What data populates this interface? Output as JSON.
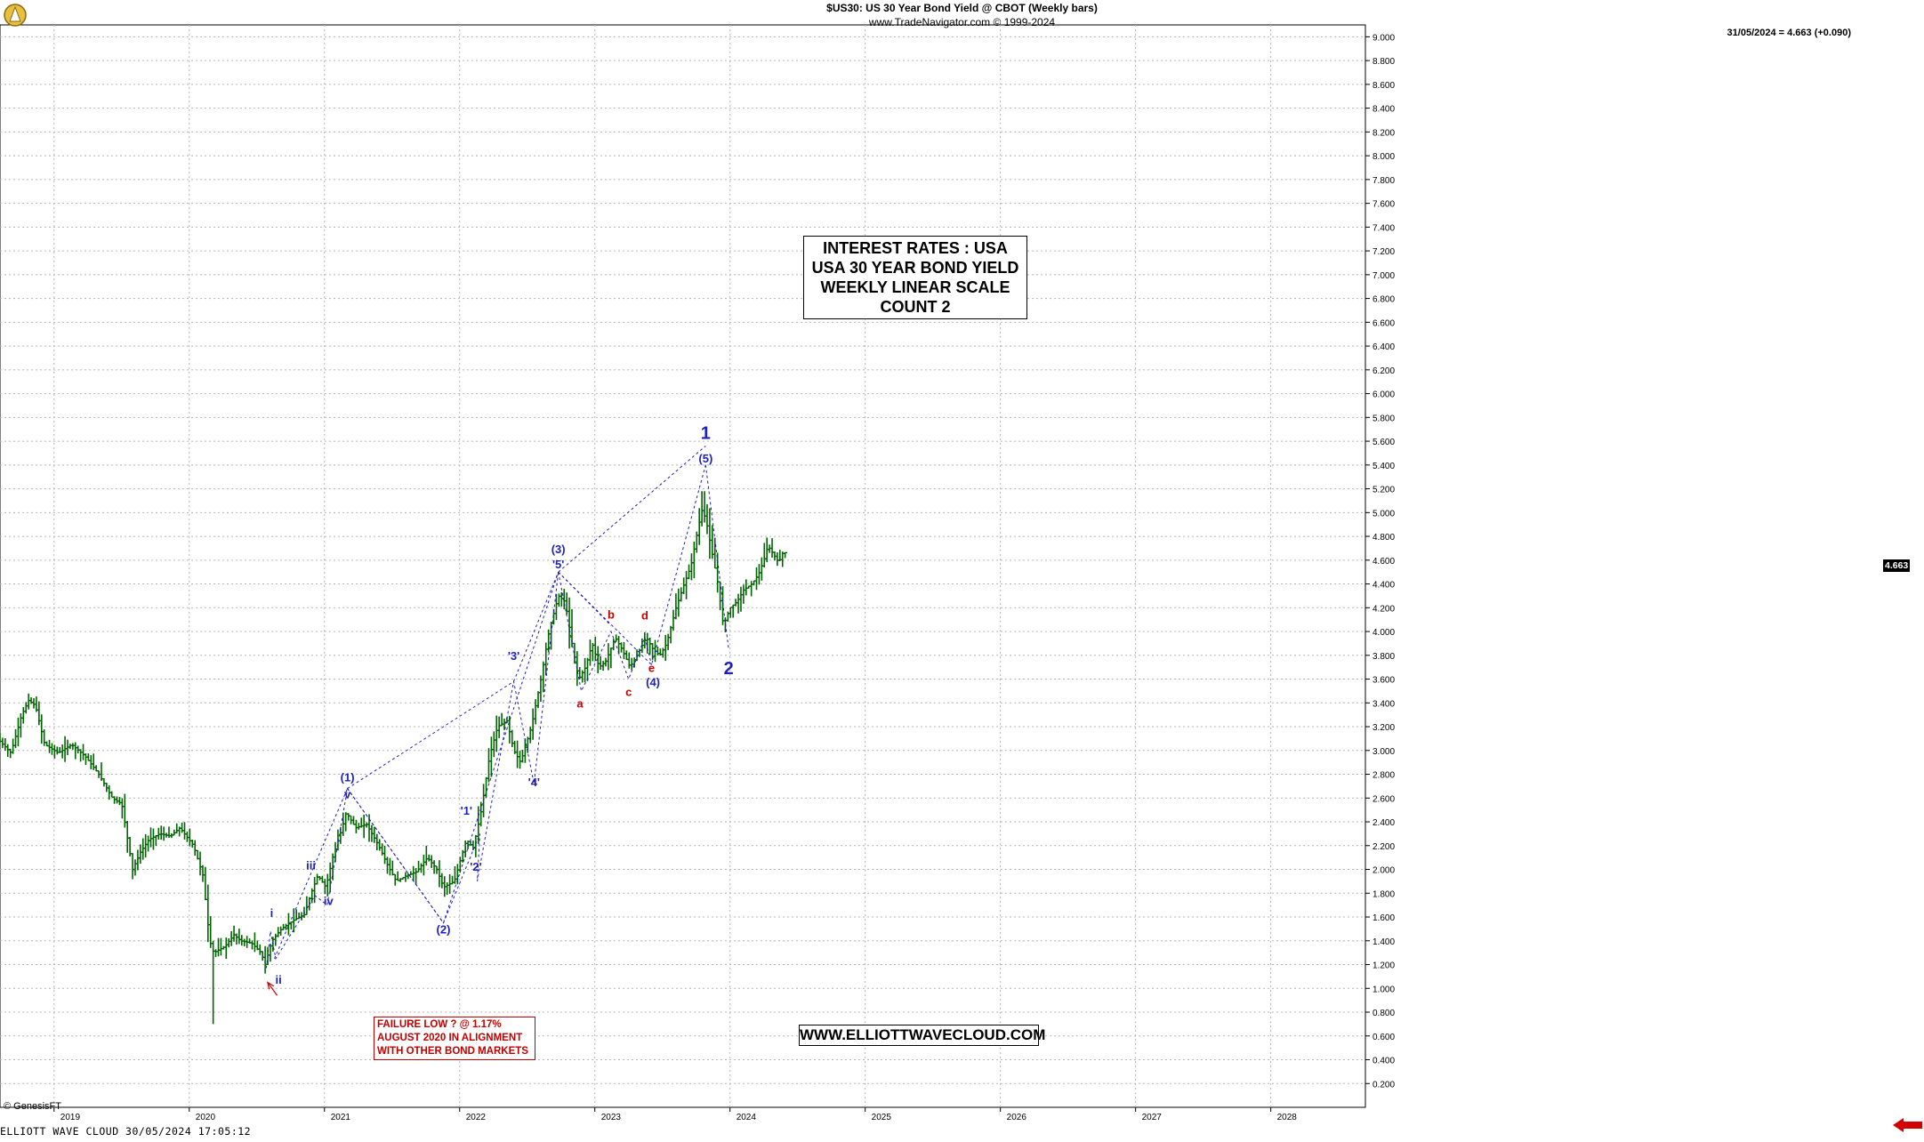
{
  "header": {
    "line1": "$US30:  US 30 Year Bond Yield @ CBOT  (Weekly bars)",
    "line2": "www.TradeNavigator.com © 1999-2024",
    "last_quote": "31/05/2024 = 4.663 (+0.090)"
  },
  "title_box": [
    "INTEREST RATES : USA",
    "USA 30 YEAR BOND YIELD",
    "WEEKLY LINEAR SCALE",
    "COUNT 2"
  ],
  "url_box": "WWW.ELLIOTTWAVECLOUD.COM",
  "note_box": [
    "FAILURE LOW ? @ 1.17%",
    "AUGUST 2020 IN ALIGNMENT",
    "WITH OTHER BOND MARKETS"
  ],
  "copyright": "© GenesisFT",
  "footer": "ELLIOTT WAVE CLOUD  30/05/2024 17:05:12",
  "price_tag": "4.663",
  "colors": {
    "bars": "#006400",
    "wave_blue": "#1f1fbf",
    "wave_red": "#cc0000",
    "grid": "#b5b5b5"
  },
  "icons": [
    "logo-icon",
    "arrow-right-icon"
  ],
  "chart_data": {
    "type": "bar",
    "x_axis": {
      "start": 2018.6,
      "end": 2028.7,
      "tick_labels": [
        "2019",
        "2020",
        "2021",
        "2022",
        "2023",
        "2024",
        "2025",
        "2026",
        "2027",
        "2028"
      ]
    },
    "y_axis": {
      "min": 0.0,
      "max": 9.1,
      "step": 0.2,
      "decimals": 3,
      "side": "right"
    },
    "grid": true,
    "series_anchor_path": [
      [
        2018.6,
        3.1
      ],
      [
        2018.7,
        2.98
      ],
      [
        2018.78,
        3.3
      ],
      [
        2018.83,
        3.42
      ],
      [
        2018.88,
        3.38
      ],
      [
        2018.95,
        3.05
      ],
      [
        2019.05,
        2.98
      ],
      [
        2019.15,
        3.05
      ],
      [
        2019.25,
        2.95
      ],
      [
        2019.35,
        2.8
      ],
      [
        2019.45,
        2.6
      ],
      [
        2019.52,
        2.55
      ],
      [
        2019.6,
        2.0
      ],
      [
        2019.66,
        2.15
      ],
      [
        2019.72,
        2.25
      ],
      [
        2019.8,
        2.3
      ],
      [
        2019.88,
        2.28
      ],
      [
        2019.95,
        2.35
      ],
      [
        2020.05,
        2.2
      ],
      [
        2020.12,
        1.95
      ],
      [
        2020.17,
        1.4
      ],
      [
        2020.2,
        1.3
      ],
      [
        2020.28,
        1.35
      ],
      [
        2020.35,
        1.45
      ],
      [
        2020.4,
        1.4
      ],
      [
        2020.48,
        1.38
      ],
      [
        2020.55,
        1.3
      ],
      [
        2020.58,
        1.2
      ],
      [
        2020.63,
        1.4
      ],
      [
        2020.7,
        1.5
      ],
      [
        2020.8,
        1.58
      ],
      [
        2020.87,
        1.62
      ],
      [
        2020.92,
        1.8
      ],
      [
        2020.97,
        1.95
      ],
      [
        2021.03,
        1.85
      ],
      [
        2021.08,
        2.1
      ],
      [
        2021.15,
        2.35
      ],
      [
        2021.18,
        2.48
      ],
      [
        2021.25,
        2.35
      ],
      [
        2021.33,
        2.38
      ],
      [
        2021.42,
        2.2
      ],
      [
        2021.48,
        2.05
      ],
      [
        2021.55,
        1.9
      ],
      [
        2021.63,
        1.95
      ],
      [
        2021.7,
        1.98
      ],
      [
        2021.78,
        2.1
      ],
      [
        2021.85,
        2.0
      ],
      [
        2021.9,
        1.85
      ],
      [
        2021.98,
        1.9
      ],
      [
        2022.03,
        2.1
      ],
      [
        2022.07,
        2.25
      ],
      [
        2022.12,
        2.18
      ],
      [
        2022.18,
        2.5
      ],
      [
        2022.24,
        2.95
      ],
      [
        2022.3,
        3.2
      ],
      [
        2022.37,
        3.25
      ],
      [
        2022.42,
        3.0
      ],
      [
        2022.47,
        2.9
      ],
      [
        2022.55,
        3.2
      ],
      [
        2022.62,
        3.6
      ],
      [
        2022.68,
        4.0
      ],
      [
        2022.75,
        4.3
      ],
      [
        2022.8,
        4.25
      ],
      [
        2022.85,
        3.9
      ],
      [
        2022.9,
        3.6
      ],
      [
        2022.95,
        3.7
      ],
      [
        2023.0,
        3.9
      ],
      [
        2023.05,
        3.7
      ],
      [
        2023.1,
        3.75
      ],
      [
        2023.17,
        3.95
      ],
      [
        2023.22,
        3.85
      ],
      [
        2023.28,
        3.7
      ],
      [
        2023.33,
        3.8
      ],
      [
        2023.4,
        3.95
      ],
      [
        2023.45,
        3.85
      ],
      [
        2023.5,
        3.8
      ],
      [
        2023.55,
        3.9
      ],
      [
        2023.62,
        4.2
      ],
      [
        2023.68,
        4.4
      ],
      [
        2023.73,
        4.55
      ],
      [
        2023.78,
        4.85
      ],
      [
        2023.81,
        5.02
      ],
      [
        2023.84,
        4.95
      ],
      [
        2023.88,
        4.7
      ],
      [
        2023.93,
        4.4
      ],
      [
        2023.97,
        4.05
      ],
      [
        2024.02,
        4.2
      ],
      [
        2024.07,
        4.25
      ],
      [
        2024.12,
        4.35
      ],
      [
        2024.18,
        4.4
      ],
      [
        2024.23,
        4.48
      ],
      [
        2024.27,
        4.6
      ],
      [
        2024.3,
        4.72
      ],
      [
        2024.34,
        4.65
      ],
      [
        2024.38,
        4.58
      ],
      [
        2024.41,
        4.663
      ]
    ],
    "extremes": [
      {
        "x": 2020.17,
        "y": 0.7,
        "kind": "low"
      },
      {
        "x": 2023.8,
        "y": 5.18,
        "kind": "high"
      }
    ],
    "wave_lines": [
      [
        [
          2020.57,
          1.17
        ],
        [
          2020.6,
          1.48
        ],
        [
          2020.64,
          1.25
        ],
        [
          2020.93,
          1.78
        ],
        [
          2021.02,
          1.7
        ],
        [
          2021.17,
          2.68
        ],
        [
          2021.88,
          1.55
        ],
        [
          2022.15,
          2.3
        ],
        [
          2022.13,
          1.9
        ],
        [
          2022.4,
          3.58
        ],
        [
          2022.55,
          2.72
        ],
        [
          2022.73,
          4.5
        ]
      ],
      [
        [
          2020.63,
          1.25
        ],
        [
          2021.17,
          2.68
        ]
      ],
      [
        [
          2021.17,
          2.68
        ],
        [
          2022.4,
          3.58
        ]
      ],
      [
        [
          2022.4,
          3.58
        ],
        [
          2022.73,
          4.5
        ]
      ],
      [
        [
          2022.73,
          4.5
        ],
        [
          2023.42,
          3.72
        ],
        [
          2023.82,
          5.4
        ]
      ],
      [
        [
          2022.73,
          4.5
        ],
        [
          2022.9,
          3.5
        ],
        [
          2023.12,
          4.0
        ],
        [
          2023.25,
          3.6
        ],
        [
          2023.37,
          3.95
        ],
        [
          2023.42,
          3.72
        ]
      ],
      [
        [
          2021.17,
          2.68
        ],
        [
          2021.88,
          1.55
        ],
        [
          2022.73,
          4.5
        ]
      ],
      [
        [
          2022.73,
          4.5
        ],
        [
          2023.82,
          5.56
        ]
      ],
      [
        [
          2023.82,
          5.4
        ],
        [
          2023.99,
          3.85
        ]
      ],
      [
        [
          2022.73,
          4.5
        ],
        [
          2023.12,
          4.05
        ]
      ]
    ],
    "wave_labels": [
      {
        "text": "i",
        "x": 2020.61,
        "y": 1.6,
        "color": "blue"
      },
      {
        "text": "ii",
        "x": 2020.66,
        "y": 1.04,
        "color": "blue"
      },
      {
        "text": "iii",
        "x": 2020.9,
        "y": 2.0,
        "color": "blue"
      },
      {
        "text": "iv",
        "x": 2021.03,
        "y": 1.7,
        "color": "blue"
      },
      {
        "text": "v",
        "x": 2021.17,
        "y": 2.6,
        "color": "blue"
      },
      {
        "text": "(1)",
        "x": 2021.17,
        "y": 2.74,
        "color": "blue"
      },
      {
        "text": "(2)",
        "x": 2021.88,
        "y": 1.46,
        "color": "blue"
      },
      {
        "text": "'1'",
        "x": 2022.05,
        "y": 2.46,
        "color": "blue"
      },
      {
        "text": "'2'",
        "x": 2022.12,
        "y": 1.99,
        "color": "blue"
      },
      {
        "text": "'3'",
        "x": 2022.4,
        "y": 3.76,
        "color": "blue"
      },
      {
        "text": "'4'",
        "x": 2022.55,
        "y": 2.7,
        "color": "blue"
      },
      {
        "text": "'5'",
        "x": 2022.73,
        "y": 4.53,
        "color": "blue"
      },
      {
        "text": "(3)",
        "x": 2022.73,
        "y": 4.66,
        "color": "blue"
      },
      {
        "text": "a",
        "x": 2022.89,
        "y": 3.36,
        "color": "red"
      },
      {
        "text": "b",
        "x": 2023.12,
        "y": 4.11,
        "color": "red"
      },
      {
        "text": "c",
        "x": 2023.25,
        "y": 3.46,
        "color": "red"
      },
      {
        "text": "d",
        "x": 2023.37,
        "y": 4.1,
        "color": "red"
      },
      {
        "text": "e",
        "x": 2023.42,
        "y": 3.66,
        "color": "red"
      },
      {
        "text": "(4)",
        "x": 2023.43,
        "y": 3.54,
        "color": "blue"
      },
      {
        "text": "(5)",
        "x": 2023.82,
        "y": 5.42,
        "color": "blue"
      },
      {
        "text": "1",
        "x": 2023.82,
        "y": 5.62,
        "color": "blue",
        "big": true
      },
      {
        "text": "2",
        "x": 2023.99,
        "y": 3.64,
        "color": "blue",
        "big": true
      }
    ],
    "note_arrow": {
      "from": [
        2020.65,
        0.94
      ],
      "to": [
        2020.58,
        1.05
      ]
    }
  }
}
